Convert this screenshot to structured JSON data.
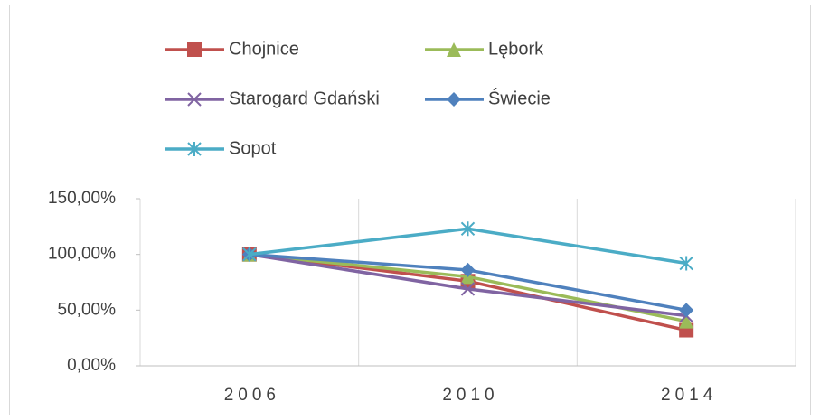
{
  "chart_data": {
    "type": "line",
    "categories": [
      "2006",
      "2010",
      "2014"
    ],
    "series": [
      {
        "name": "Chojnice",
        "color": "#c0504d",
        "marker": "square",
        "values": [
          100,
          76,
          32
        ]
      },
      {
        "name": "Lębork",
        "color": "#9bbb59",
        "marker": "triangle",
        "values": [
          100,
          80,
          40
        ]
      },
      {
        "name": "Starogard Gdański",
        "color": "#8064a2",
        "marker": "x",
        "values": [
          100,
          69,
          45
        ]
      },
      {
        "name": "Świecie",
        "color": "#4f81bd",
        "marker": "diamond",
        "values": [
          100,
          86,
          50
        ]
      },
      {
        "name": "Sopot",
        "color": "#4bacc6",
        "marker": "star",
        "values": [
          100,
          123,
          92
        ]
      }
    ],
    "ylim": [
      0,
      150
    ],
    "yticks": [
      {
        "value": 0,
        "label": "0,00%"
      },
      {
        "value": 50,
        "label": "50,00%"
      },
      {
        "value": 100,
        "label": "100,00%"
      },
      {
        "value": 150,
        "label": "150,00%"
      }
    ],
    "legend": "top"
  }
}
